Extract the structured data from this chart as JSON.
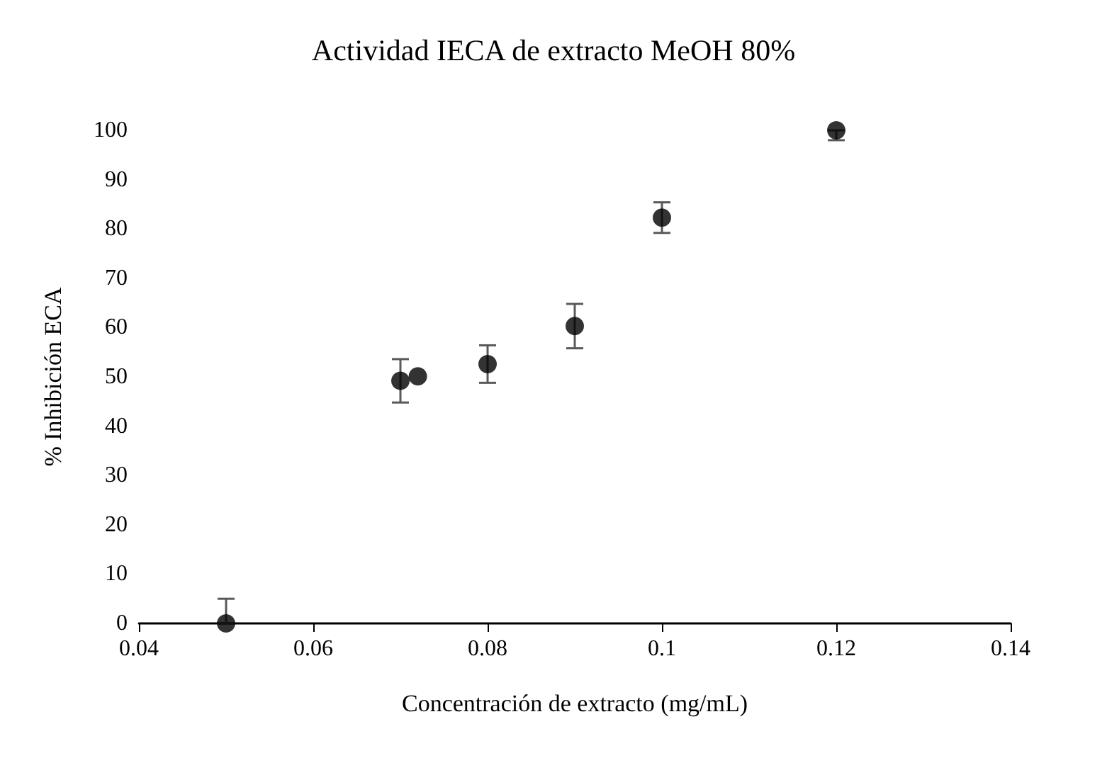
{
  "chart_data": {
    "type": "scatter",
    "title": "Actividad IECA de extracto MeOH 80%",
    "xlabel": "Concentración de extracto (mg/mL)",
    "ylabel": "% Inhibición ECA",
    "x": [
      0.05,
      0.07,
      0.072,
      0.08,
      0.09,
      0.1,
      0.12
    ],
    "series": [
      {
        "color": "#000000",
        "values": [
          0,
          49.2,
          50.1,
          52.6,
          60.3,
          82.3,
          100
        ],
        "errors": [
          [
            0,
            5
          ],
          4.4,
          null,
          3.8,
          4.5,
          3.1,
          [
            98,
            100
          ]
        ]
      }
    ],
    "xlim": [
      0.04,
      0.14
    ],
    "xticks": [
      0.04,
      0.06,
      0.08,
      0.1,
      0.12,
      0.14
    ],
    "ylim": [
      0,
      100
    ],
    "yticks": [
      0,
      10,
      20,
      30,
      40,
      50,
      60,
      70,
      80,
      90,
      100
    ],
    "grid": false,
    "marker": "circle"
  }
}
